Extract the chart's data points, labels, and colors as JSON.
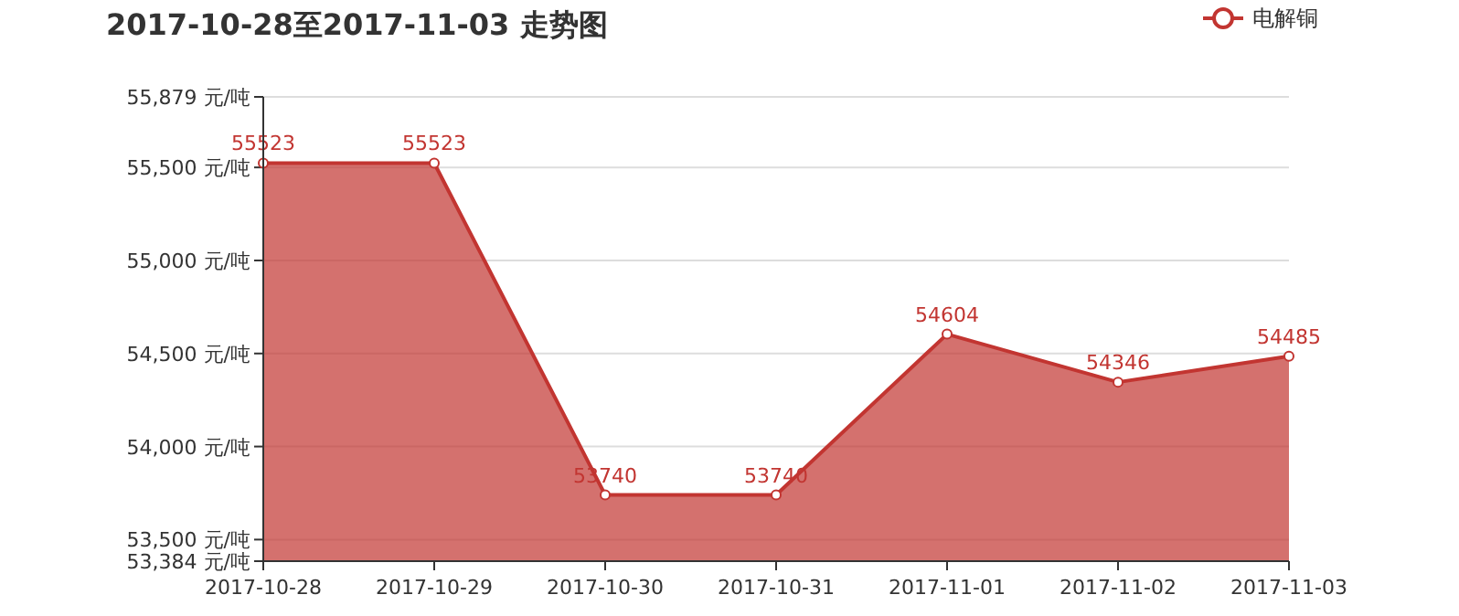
{
  "chart_data": {
    "type": "area",
    "title": "2017-10-28至2017-11-03 走势图",
    "categories": [
      "2017-10-28",
      "2017-10-29",
      "2017-10-30",
      "2017-10-31",
      "2017-11-01",
      "2017-11-02",
      "2017-11-03"
    ],
    "series": [
      {
        "name": "电解铜",
        "color": "#c23531",
        "values": [
          55523,
          55523,
          53740,
          53740,
          54604,
          54346,
          54485
        ]
      }
    ],
    "ylim": [
      53384,
      55879
    ],
    "yticks": [
      {
        "value": 53384,
        "label": "53,384 元/吨"
      },
      {
        "value": 53500,
        "label": "53,500 元/吨"
      },
      {
        "value": 54000,
        "label": "54,000 元/吨"
      },
      {
        "value": 54500,
        "label": "54,500 元/吨"
      },
      {
        "value": 55000,
        "label": "55,000 元/吨"
      },
      {
        "value": 55500,
        "label": "55,500 元/吨"
      },
      {
        "value": 55879,
        "label": "55,879 元/吨"
      }
    ],
    "data_labels": true,
    "grid": "y",
    "legend": "top right",
    "marker": "circle"
  }
}
